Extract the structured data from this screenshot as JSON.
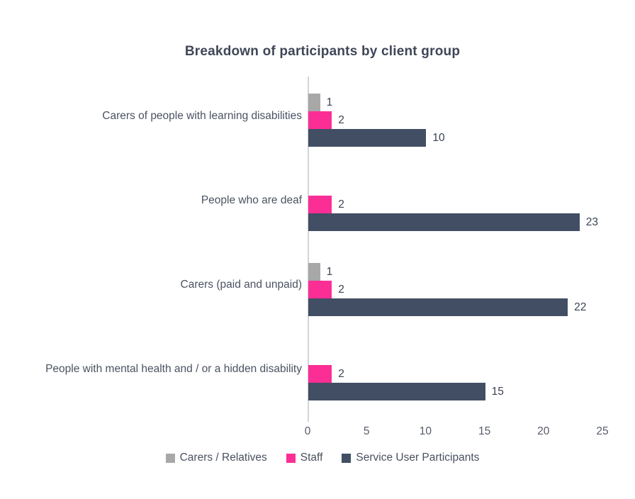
{
  "title": "Breakdown of participants by client group",
  "chart_data": {
    "type": "bar",
    "orientation": "horizontal",
    "title": "Breakdown of participants by client group",
    "categories": [
      "Carers of people with learning disabilities",
      "People who are deaf",
      "Carers (paid and unpaid)",
      "People with mental health and / or a hidden disability"
    ],
    "series": [
      {
        "name": "Carers / Relatives",
        "color": "#a8a8a8",
        "values": [
          1,
          null,
          1,
          null
        ]
      },
      {
        "name": "Staff",
        "color": "#fb2e95",
        "values": [
          2,
          2,
          2,
          2
        ]
      },
      {
        "name": "Service User Participants",
        "color": "#414e63",
        "values": [
          10,
          23,
          22,
          15
        ]
      }
    ],
    "xlim": [
      0,
      25
    ],
    "xticks": [
      0,
      5,
      10,
      15,
      20,
      25
    ],
    "value_labels": true,
    "grid": false,
    "legend_position": "bottom"
  },
  "styles": {
    "background": "#ffffff",
    "title_color": "#3f4657",
    "category_label_color": "#4b5262",
    "value_label_color": "#3a4353",
    "tick_label_color": "#565c6b",
    "axis_line_color": "#d2d4d9"
  }
}
